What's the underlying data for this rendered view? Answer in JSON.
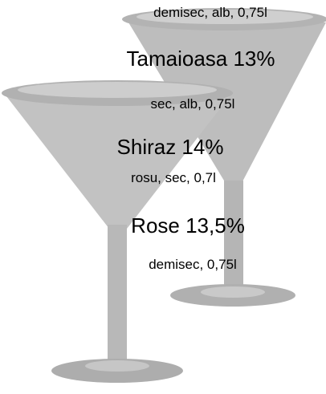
{
  "items": [
    {
      "details": "demisec, alb, 0,75l"
    },
    {
      "name": "Tamaioasa 13%",
      "details": "sec, alb, 0,75l"
    },
    {
      "name": "Shiraz 14%",
      "details": "rosu, sec, 0,7l"
    },
    {
      "name": "Rose 13,5%",
      "details": "demisec, 0,75l"
    }
  ]
}
